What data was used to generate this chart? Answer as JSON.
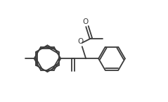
{
  "bg_color": "#ffffff",
  "line_color": "#3a3a3a",
  "line_width": 1.3,
  "figsize": [
    2.39,
    1.45
  ],
  "dpi": 100,
  "xlim": [
    0,
    12
  ],
  "ylim": [
    0,
    8
  ]
}
